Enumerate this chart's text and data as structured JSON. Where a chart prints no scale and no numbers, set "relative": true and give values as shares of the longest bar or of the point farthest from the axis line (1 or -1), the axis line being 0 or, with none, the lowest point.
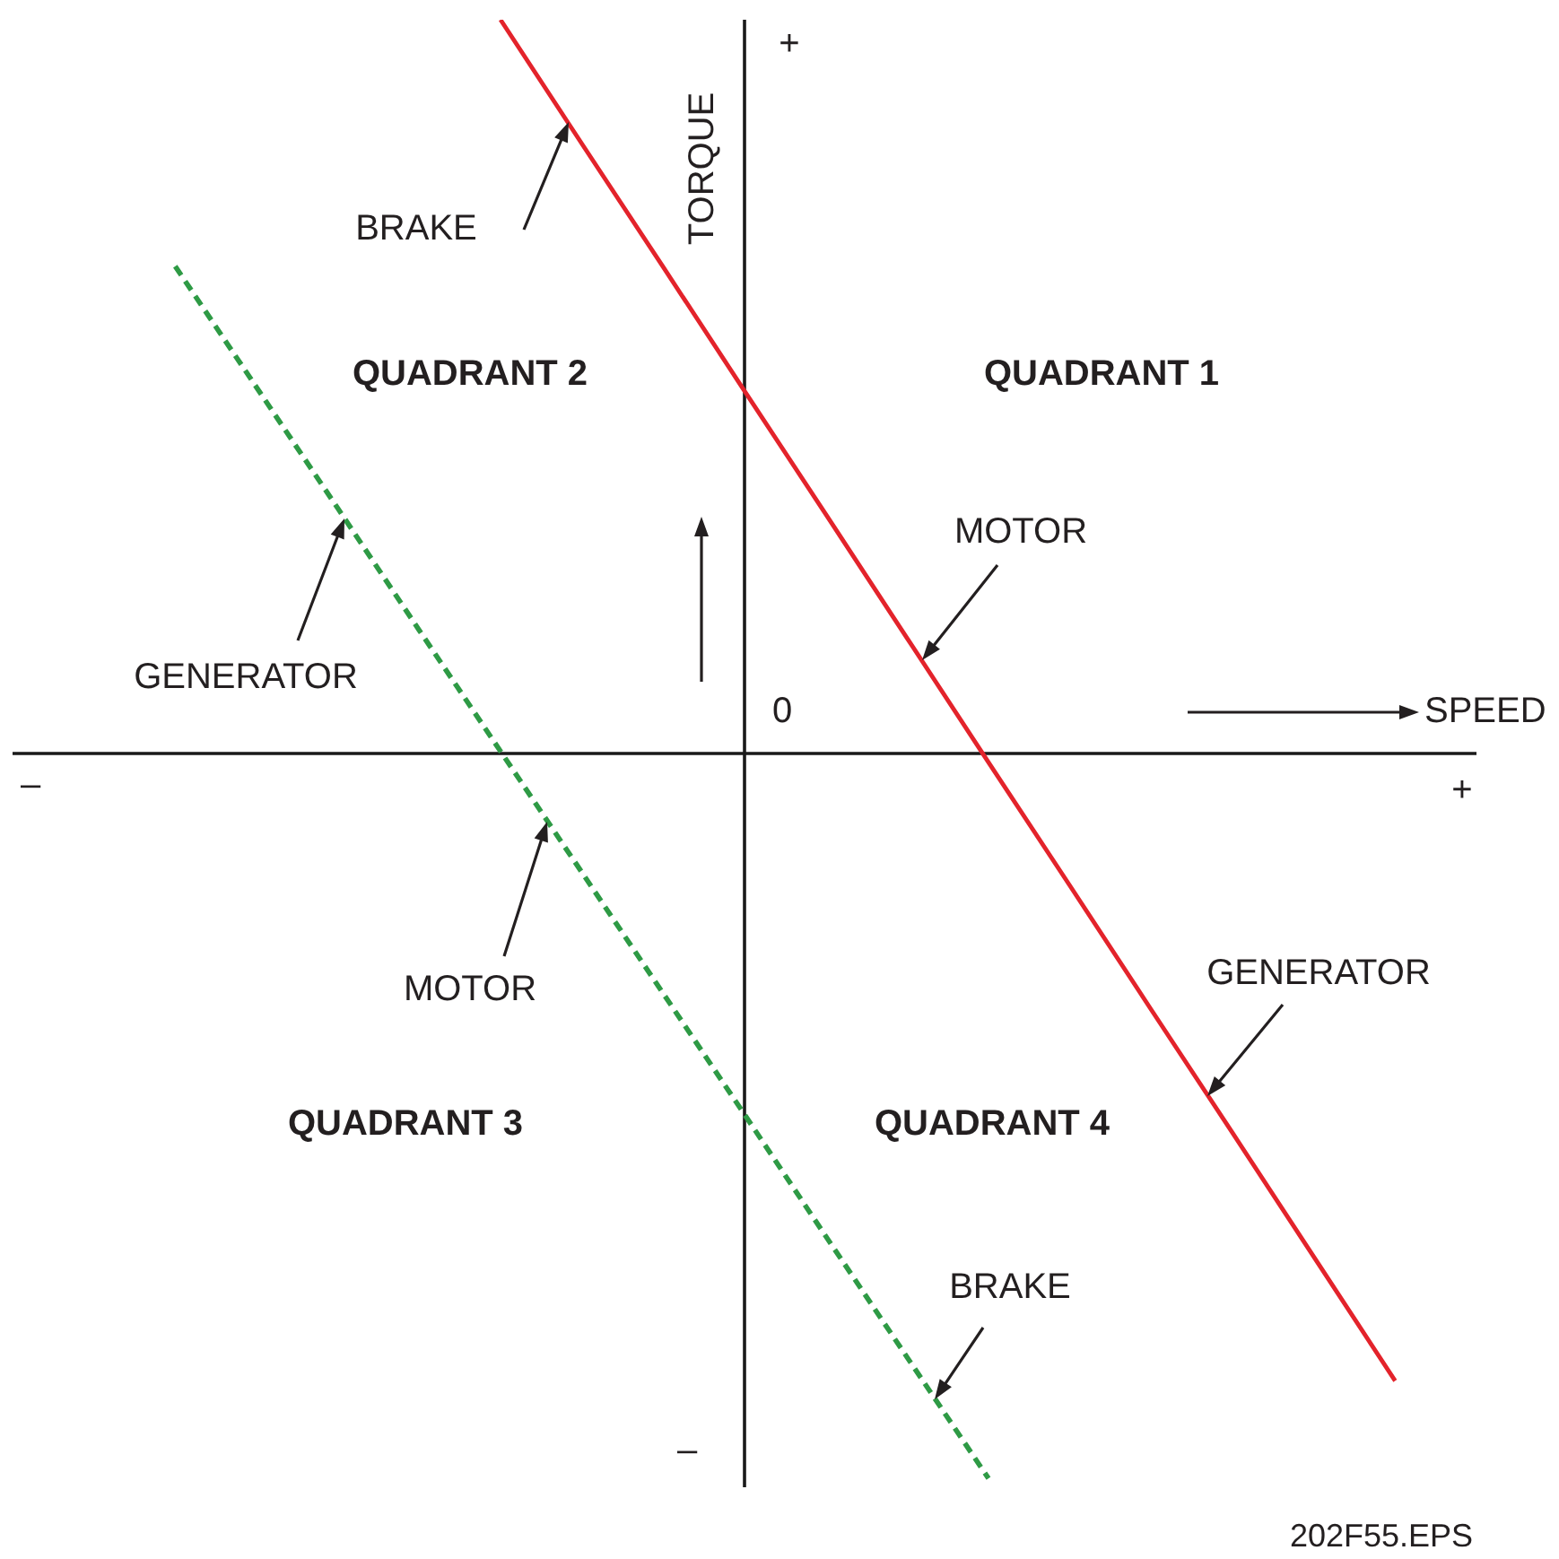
{
  "chart_data": {
    "type": "line",
    "relative": true,
    "xlabel": "SPEED",
    "ylabel": "TORQUE",
    "categories": [
      null,
      null,
      null,
      null,
      null,
      null,
      null,
      null,
      null,
      null,
      null,
      null,
      null,
      null,
      null,
      null,
      null,
      null,
      null
    ],
    "grid": false,
    "legend": false,
    "marker": "none",
    "series": [
      {
        "color": "#e3232b",
        "line_style": "solid",
        "values": [
          null,
          null,
          null,
          null,
          null,
          null,
          1.0,
          0.831,
          0.663,
          0.494,
          0.326,
          0.157,
          -0.012,
          -0.18,
          -0.349,
          -0.517,
          -0.686,
          -0.855,
          null
        ]
      },
      {
        "color": "#2e9a45",
        "line_style": "dashed",
        "values": [
          null,
          null,
          0.664,
          0.499,
          0.334,
          0.168,
          0.003,
          -0.162,
          -0.327,
          -0.492,
          -0.658,
          -0.823,
          -0.988,
          null,
          null,
          null,
          null,
          null,
          null
        ]
      }
    ],
    "annotations": [
      "+",
      "BRAKE",
      "QUADRANT 2",
      "QUADRANT 1",
      "MOTOR",
      "GENERATOR",
      "0",
      "–",
      "+",
      "MOTOR",
      "GENERATOR",
      "QUADRANT 3",
      "QUADRANT 4",
      "BRAKE",
      "–",
      "202F55.EPS"
    ]
  }
}
